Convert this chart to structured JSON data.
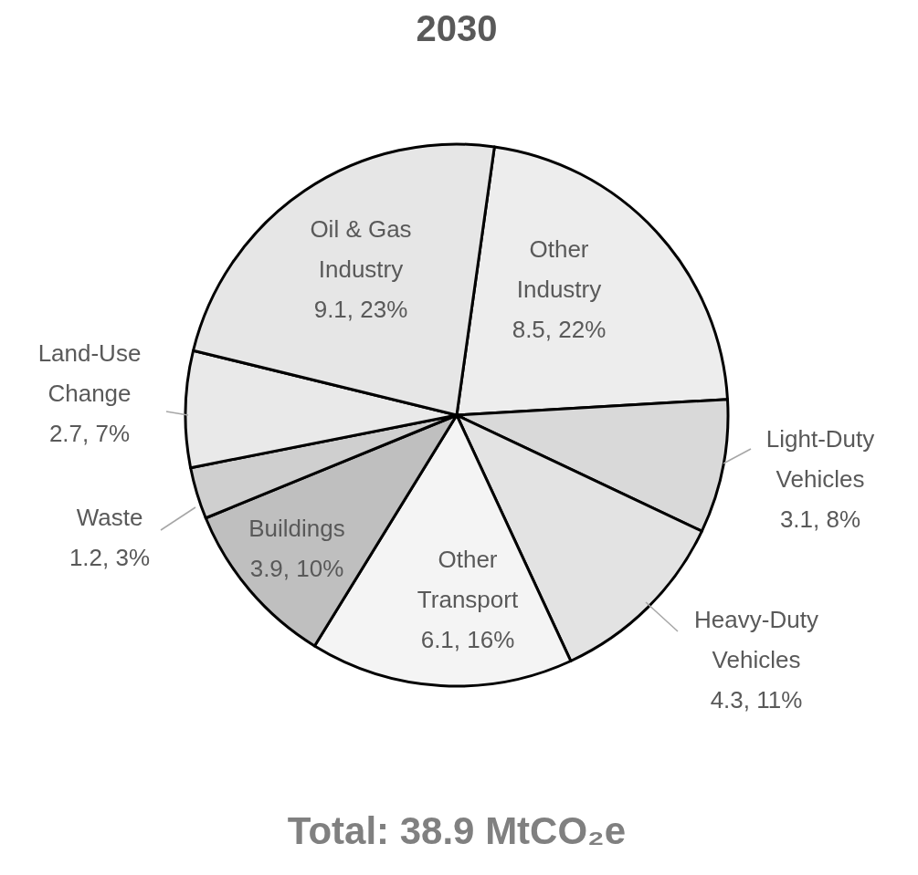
{
  "chart_data": {
    "type": "pie",
    "title": "2030",
    "categories": [
      "Other Industry",
      "Light-Duty Vehicles",
      "Heavy-Duty Vehicles",
      "Other Transport",
      "Buildings",
      "Waste",
      "Land-Use Change",
      "Oil & Gas Industry"
    ],
    "values": [
      8.5,
      3.1,
      4.3,
      6.1,
      3.9,
      1.2,
      2.7,
      9.1
    ],
    "value_labels": [
      "8.5, 22%",
      "3.1, 8%",
      "4.3, 11%",
      "6.1, 16%",
      "3.9, 10%",
      "1.2, 3%",
      "2.7, 7%",
      "9.1, 23%"
    ],
    "colors": [
      "#ededed",
      "#d9d9d9",
      "#e3e3e3",
      "#f4f4f4",
      "#bfbfbf",
      "#cfcfcf",
      "#e9e9e9",
      "#e6e6e6"
    ],
    "annotations": [
      "Total: 38.9 MtCO₂e"
    ]
  }
}
